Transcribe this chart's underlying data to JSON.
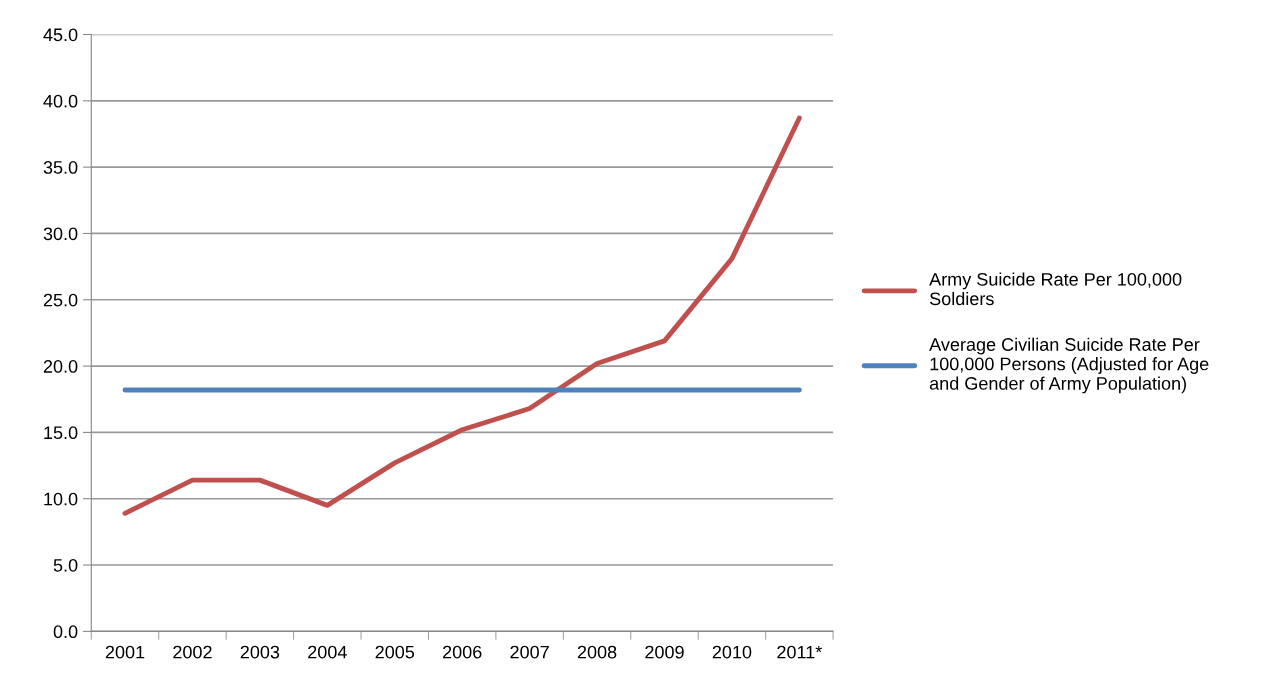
{
  "chart_data": {
    "type": "line",
    "categories": [
      "2001",
      "2002",
      "2003",
      "2004",
      "2005",
      "2006",
      "2007",
      "2008",
      "2009",
      "2010",
      "2011*"
    ],
    "series": [
      {
        "name": "Army Suicide Rate Per 100,000 Soldiers",
        "color": "#c0504d",
        "values": [
          8.9,
          11.4,
          11.4,
          9.5,
          12.7,
          15.2,
          16.8,
          20.2,
          21.9,
          28.1,
          38.7
        ]
      },
      {
        "name": "Average Civilian Suicide Rate Per 100,000 Persons (Adjusted for Age and Gender of Army Population)",
        "color": "#4f81bd",
        "values": [
          18.2,
          18.2,
          18.2,
          18.2,
          18.2,
          18.2,
          18.2,
          18.2,
          18.2,
          18.2,
          18.2
        ]
      }
    ],
    "ylim": [
      0,
      45
    ],
    "yticks": [
      {
        "value": 0,
        "label": "0.0"
      },
      {
        "value": 5,
        "label": "5.0"
      },
      {
        "value": 10,
        "label": "10.0"
      },
      {
        "value": 15,
        "label": "15.0"
      },
      {
        "value": 20,
        "label": "20.0"
      },
      {
        "value": 25,
        "label": "25.0"
      },
      {
        "value": 30,
        "label": "30.0"
      },
      {
        "value": 35,
        "label": "35.0"
      },
      {
        "value": 40,
        "label": "40.0"
      },
      {
        "value": 45,
        "label": "45.0"
      }
    ],
    "grid": "y",
    "legend": "right",
    "marker": "none",
    "line_style": "solid"
  }
}
